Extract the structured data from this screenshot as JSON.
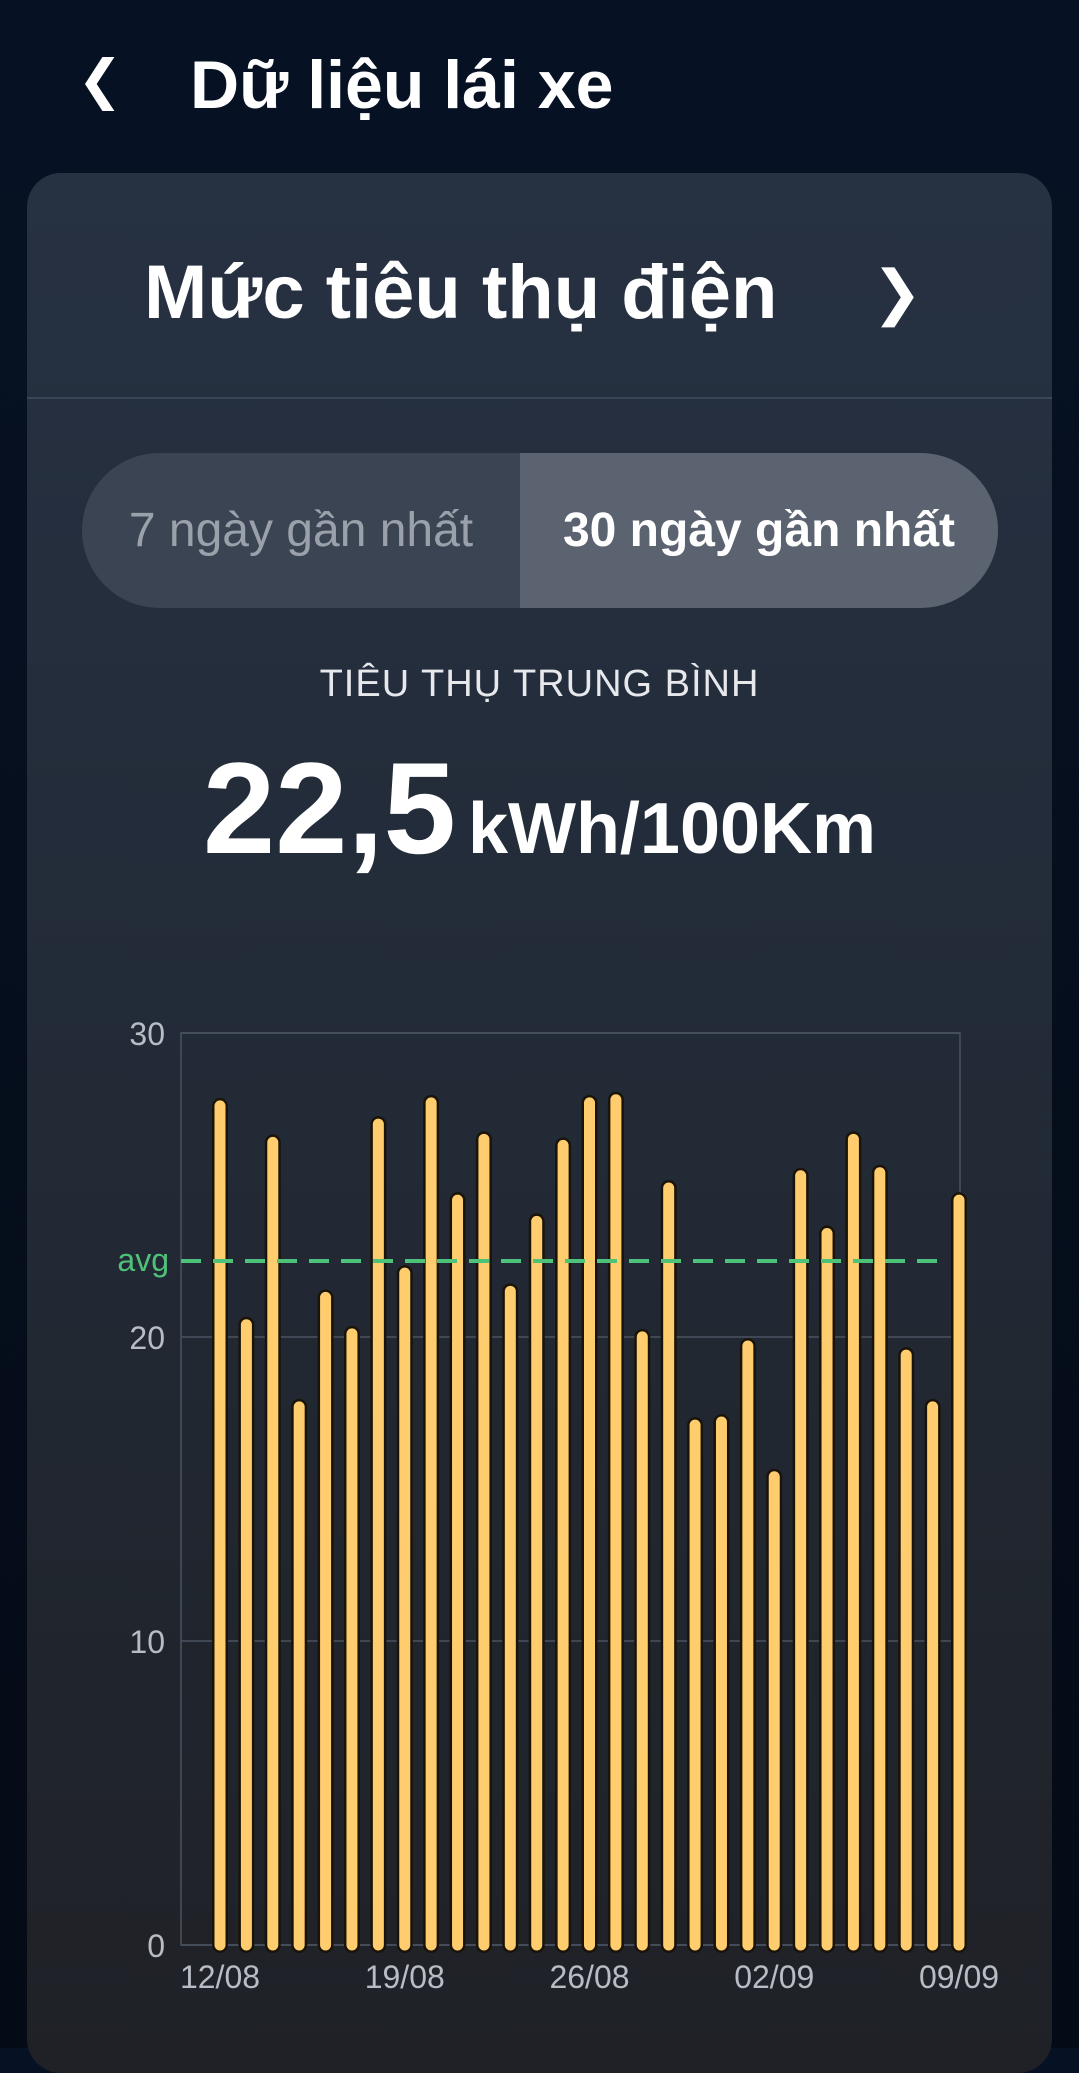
{
  "header": {
    "title": "Dữ liệu lái xe",
    "back_icon": "chevron-left-icon"
  },
  "card": {
    "title": "Mức tiêu thụ điện",
    "chevron_icon": "chevron-right-icon",
    "tabs": [
      {
        "label": "7 ngày gần nhất",
        "active": false
      },
      {
        "label": "30 ngày gần nhất",
        "active": true
      }
    ],
    "average_label": "TIÊU THỤ TRUNG BÌNH",
    "average_value": "22,5",
    "average_unit": "kWh/100Km"
  },
  "chart_data": {
    "type": "bar",
    "categories": [
      "12/08",
      "13/08",
      "14/08",
      "15/08",
      "16/08",
      "17/08",
      "18/08",
      "19/08",
      "20/08",
      "21/08",
      "22/08",
      "23/08",
      "24/08",
      "25/08",
      "26/08",
      "27/08",
      "28/08",
      "29/08",
      "30/08",
      "31/08",
      "01/09",
      "02/09",
      "03/09",
      "04/09",
      "05/09",
      "06/09",
      "07/09",
      "08/09",
      "09/09"
    ],
    "values": [
      27.8,
      20.6,
      26.6,
      17.9,
      21.5,
      20.3,
      27.2,
      22.3,
      27.9,
      24.7,
      26.7,
      21.7,
      24.0,
      26.5,
      27.9,
      28.0,
      20.2,
      25.1,
      17.3,
      17.4,
      19.9,
      15.6,
      25.5,
      23.6,
      26.7,
      25.6,
      19.6,
      17.9,
      24.7
    ],
    "x_tick_labels": [
      "12/08",
      "19/08",
      "26/08",
      "02/09",
      "09/09"
    ],
    "y_ticks": [
      "0",
      "10",
      "20",
      "30"
    ],
    "ylim": [
      0,
      30
    ],
    "grid": true,
    "reference_line": {
      "label": "avg",
      "value": 22.5,
      "color": "#4fc27a",
      "style": "dashed"
    },
    "bar_color": "#ffcc6e",
    "xlabel": "",
    "ylabel": ""
  }
}
